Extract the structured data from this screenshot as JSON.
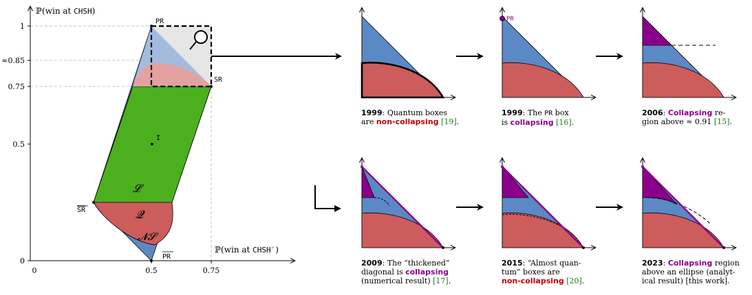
{
  "axes": {
    "y_label_prefix": "ℙ(win at ",
    "y_label_game": "CHSH",
    "y_label_suffix": ")",
    "x_label_prefix": "ℙ(win at ",
    "x_label_game": "CHSH′",
    "x_label_suffix": ")",
    "y_ticks": [
      "1",
      "≈0.85",
      "0.75",
      "0.5",
      "0"
    ],
    "x_ticks": [
      "0",
      "0.5",
      "0.75"
    ]
  },
  "points": {
    "pr": "PR",
    "sr": "SR",
    "sr_bar": "SR",
    "pr_bar": "PR",
    "center": "I"
  },
  "regions": {
    "local": "𝓛",
    "quantum": "𝓠",
    "nonsignaling": "𝓝𝓢"
  },
  "panels": {
    "p1": {
      "pt_label": ""
    },
    "p2": {
      "pt_label": "PR"
    }
  },
  "captions": {
    "c1999a": {
      "year": "1999",
      "t1": ": Quantum boxes",
      "t2": "are ",
      "kw": "non-collapsing",
      "t3": " ",
      "ref": "[19]",
      "t4": "."
    },
    "c1999b": {
      "year": "1999",
      "t1": ": The ",
      "mono": "PR",
      "t2": " box",
      "t3": "is ",
      "kw": "collapsing",
      "t4": " ",
      "ref": "[16]",
      "t5": "."
    },
    "c2006": {
      "year": "2006",
      "t1": ": ",
      "kw": "Collapsing",
      "t2": " re-",
      "t3": "gion above ≈ 0.91 ",
      "ref": "[15]",
      "t4": "."
    },
    "c2009": {
      "year": "2009",
      "t1": ": The “thickened”",
      "t2": "diagonal is ",
      "kw": "collapsing",
      "t3": "(numerical result) ",
      "ref": "[17]",
      "t4": "."
    },
    "c2015": {
      "year": "2015",
      "t1": ": “Almost quan-",
      "t2": "tum” boxes are",
      "kw": "non-collapsing",
      "t3": " ",
      "ref": "[20]",
      "t4": "."
    },
    "c2023": {
      "year": "2023",
      "t1": ": ",
      "kw": "Collapsing",
      "t2": " region",
      "t3": "above an ellipse (analyt-",
      "t4": "ical result) [this work]."
    }
  },
  "colors": {
    "nonsignaling": "#5b89c6",
    "quantum": "#cd5c5c",
    "local": "#4caf1e",
    "collapsing": "#8b008b",
    "nonsignaling_light": "#a3bcdd",
    "quantum_light": "#e3a1a1",
    "zoom_box": "#e6e6e6"
  }
}
